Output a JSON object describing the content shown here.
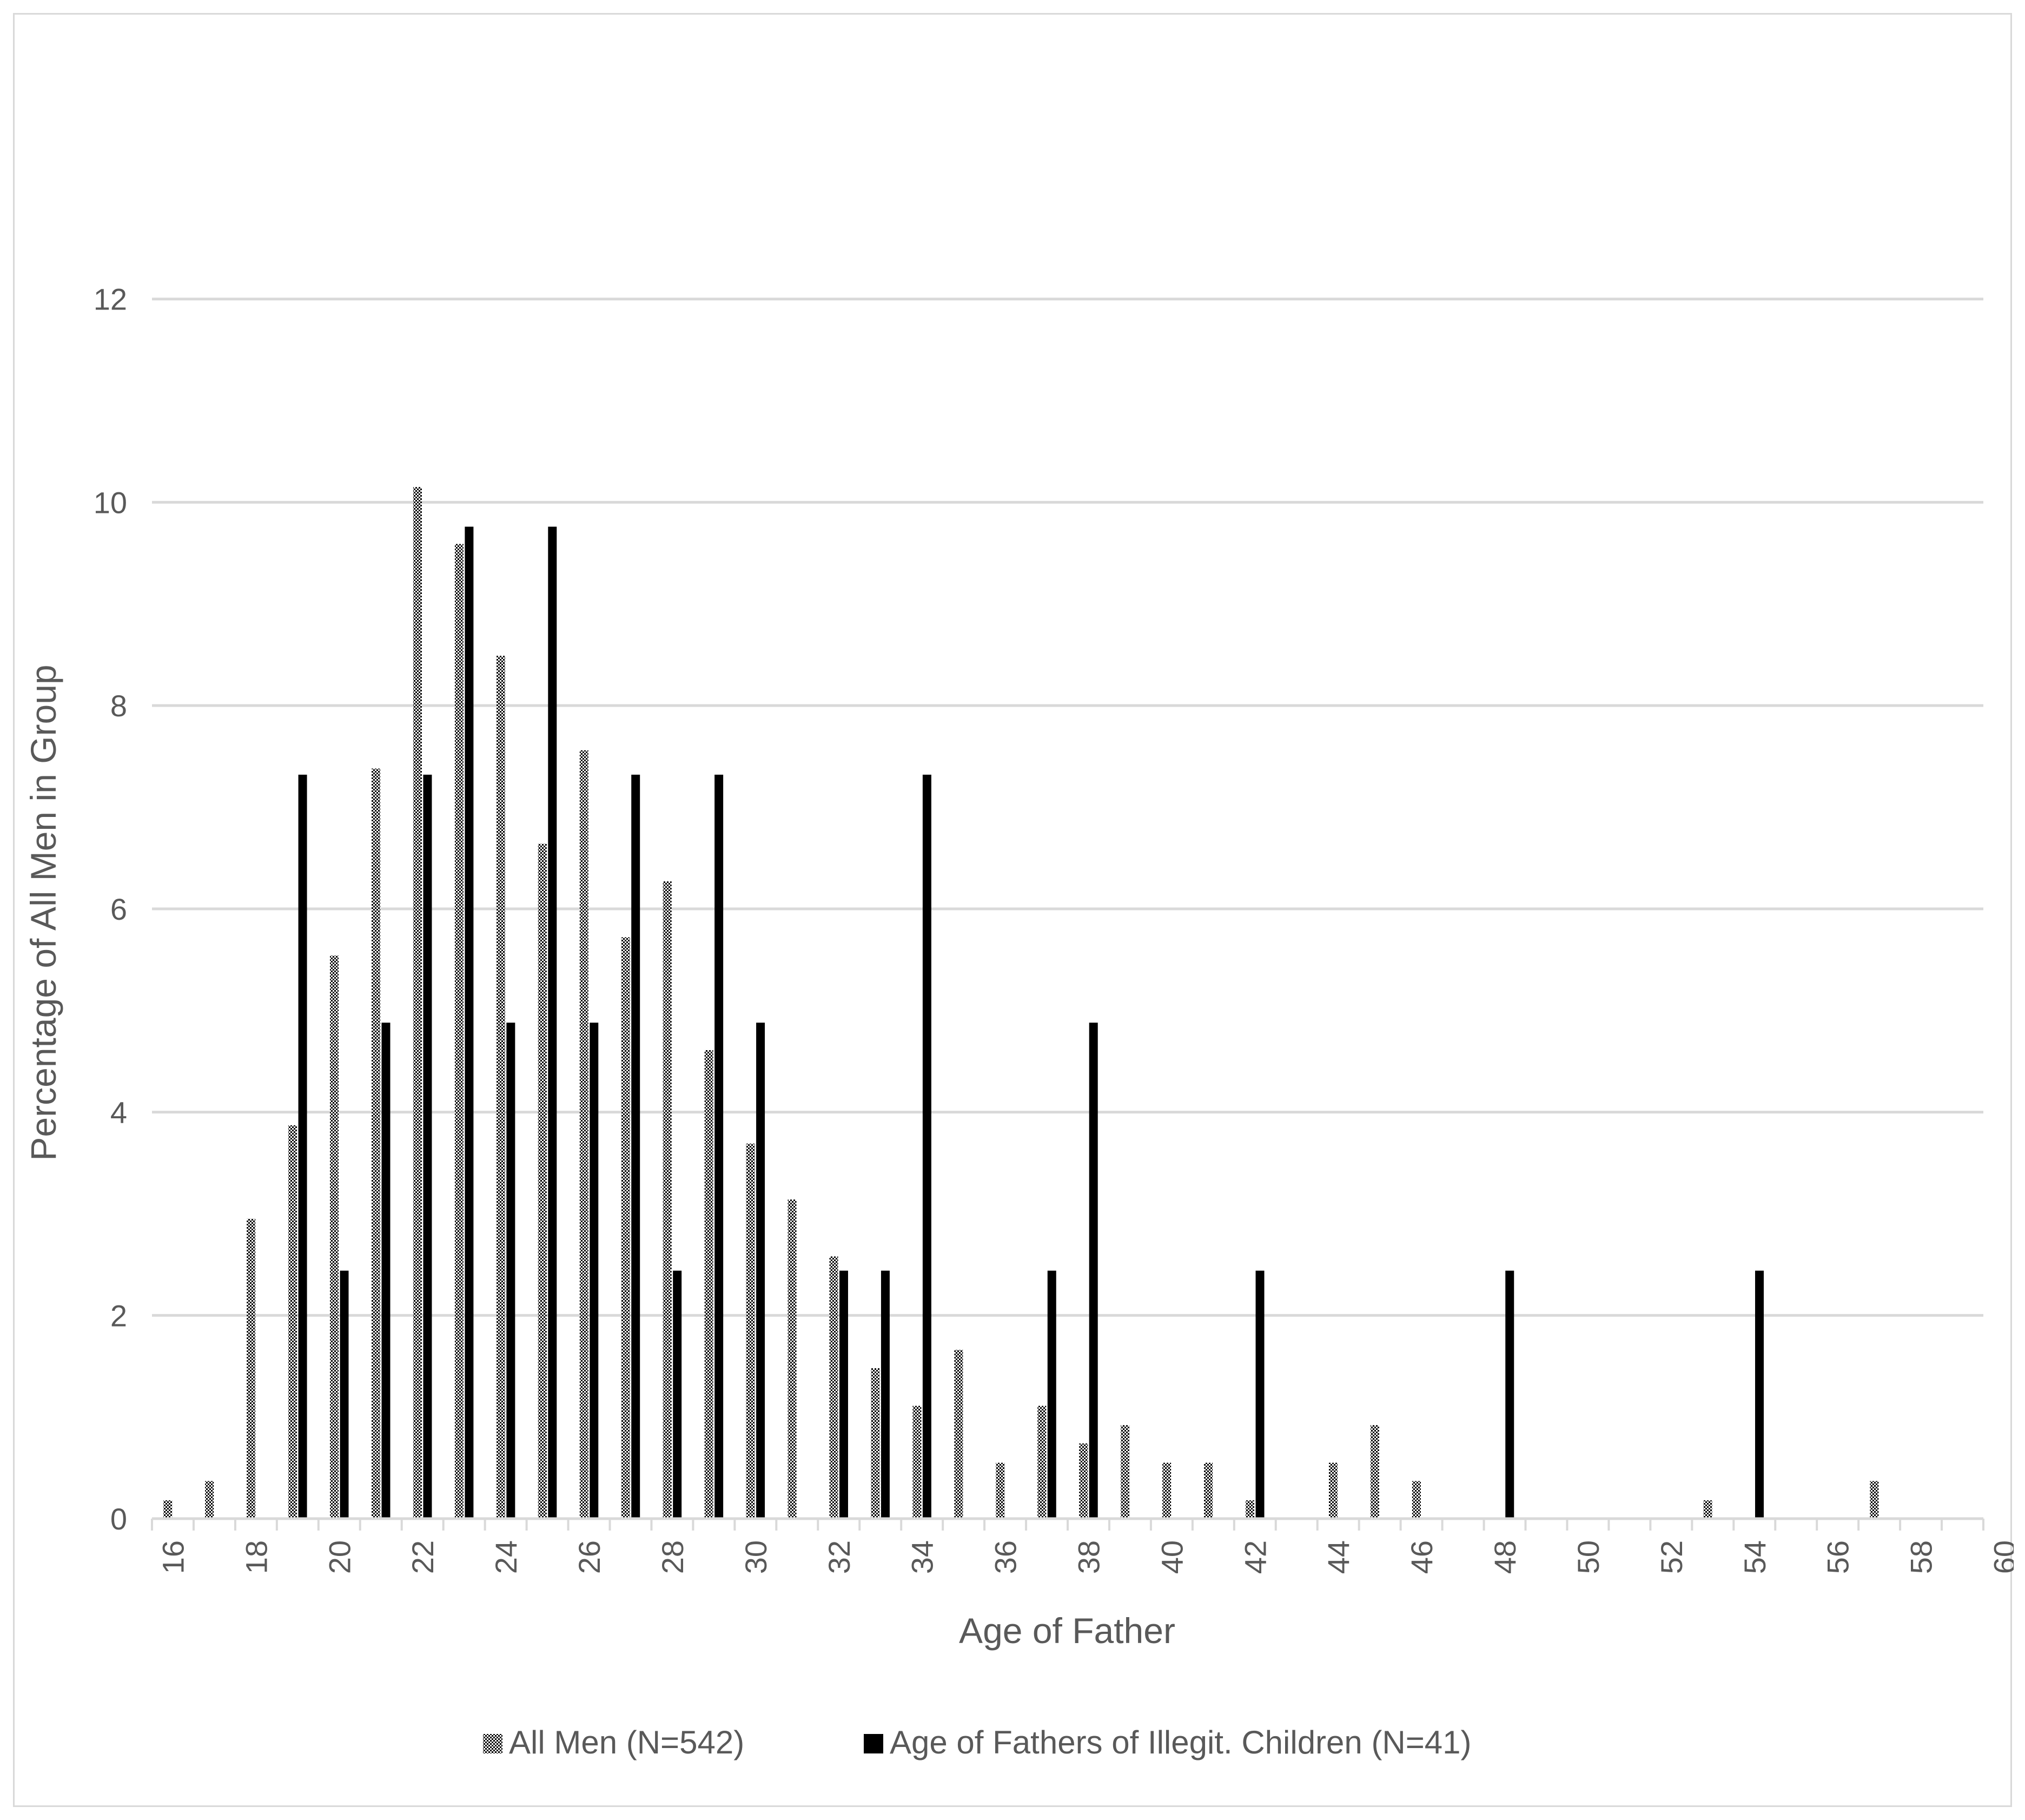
{
  "chart_data": {
    "type": "bar",
    "title": "",
    "xlabel": "Age of Father",
    "ylabel": "Percentage of All Men in Group",
    "ylim": [
      0,
      14
    ],
    "yticks": [
      0,
      2,
      4,
      6,
      8,
      10,
      12
    ],
    "x_range": [
      16,
      60
    ],
    "xtick_labels": [
      "16",
      "18",
      "20",
      "22",
      "24",
      "26",
      "28",
      "30",
      "32",
      "34",
      "36",
      "38",
      "40",
      "42",
      "44",
      "46",
      "48",
      "50",
      "52",
      "54",
      "56",
      "58",
      "60"
    ],
    "categories": [
      16,
      17,
      18,
      19,
      20,
      21,
      22,
      23,
      24,
      25,
      26,
      27,
      28,
      29,
      30,
      31,
      32,
      33,
      34,
      35,
      36,
      37,
      38,
      39,
      40,
      41,
      42,
      43,
      44,
      45,
      46,
      47,
      48,
      49,
      50,
      51,
      52,
      53,
      54,
      55,
      56,
      57,
      58,
      59
    ],
    "grid": true,
    "legend_position": "bottom",
    "series": [
      {
        "name": "All Men (N=542)",
        "pattern": "dotted-hatch",
        "color": "#000000",
        "values": [
          0.18,
          0.37,
          2.95,
          3.87,
          5.54,
          7.38,
          10.15,
          9.59,
          8.49,
          6.64,
          7.56,
          5.72,
          6.27,
          4.61,
          3.69,
          3.14,
          2.58,
          1.48,
          1.11,
          1.66,
          0.55,
          1.11,
          0.74,
          0.92,
          0.55,
          0.55,
          0.18,
          0,
          0.55,
          0.92,
          0.37,
          0,
          0,
          0,
          0,
          0,
          0,
          0.18,
          0,
          0,
          0,
          0.37,
          0,
          0
        ]
      },
      {
        "name": "Age of Fathers of Illegit. Children (N=41)",
        "pattern": "solid",
        "color": "#000000",
        "values": [
          0,
          0,
          0,
          7.32,
          2.44,
          4.88,
          7.32,
          9.76,
          4.88,
          9.76,
          4.88,
          7.32,
          2.44,
          7.32,
          4.88,
          0,
          2.44,
          2.44,
          7.32,
          0,
          0,
          2.44,
          4.88,
          0,
          0,
          0,
          2.44,
          0,
          0,
          0,
          0,
          0,
          2.44,
          0,
          0,
          0,
          0,
          0,
          2.44,
          0,
          0,
          0,
          0,
          0
        ]
      }
    ]
  }
}
